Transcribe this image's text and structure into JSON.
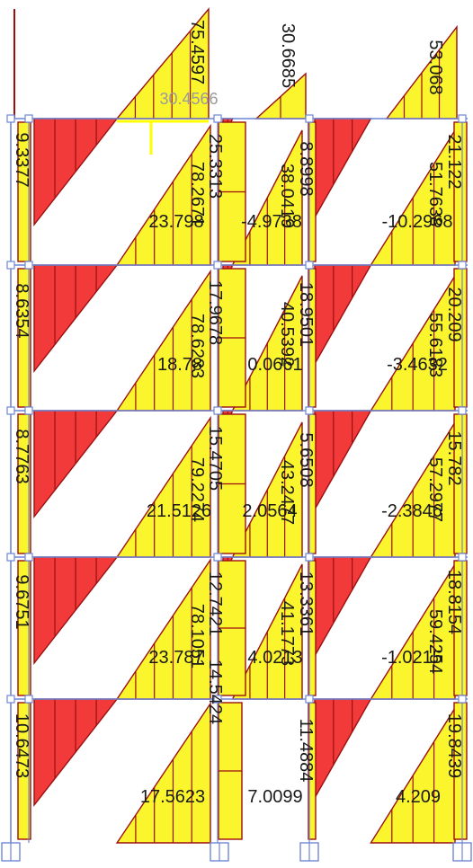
{
  "diagram": {
    "colors": {
      "negative_fill": "#f23a3a",
      "positive_fill": "#fbf52e",
      "outline": "#9b0f0f",
      "frame": "#6f86d6",
      "highlight": "#ffff00",
      "text": "#1a1a1a",
      "gray_text": "#9a9a9a"
    },
    "top_row": {
      "labels": [
        "75.4597",
        "30.4566",
        "30.6685",
        "53.068"
      ]
    },
    "beam_values": [
      [
        "23.798",
        "-4.9738",
        "-10.2968"
      ],
      [
        "18.78",
        "0.0661",
        "-3.4632"
      ],
      [
        "21.5126",
        "2.0564",
        "-2.3846"
      ],
      [
        "23.787",
        "4.0213",
        "-1.0215"
      ],
      [
        "17.5623",
        "7.0099",
        "4.209"
      ]
    ],
    "span_values": [
      [
        "78.2671",
        "38.0419",
        "51.7638"
      ],
      [
        "78.6233",
        "40.5392",
        "55.6183"
      ],
      [
        "79.2274",
        "43.2477",
        "57.2977"
      ],
      [
        "78.1051",
        "41.1773",
        "59.4254"
      ]
    ],
    "column_values": {
      "left": [
        "9.3377",
        "8.6354",
        "8.7763",
        "9.6751",
        "10.6473"
      ],
      "center": [
        "25.3313",
        "17.9678",
        "15.4705",
        "12.7421",
        "14.5424"
      ],
      "middle": [
        "8.8998",
        "18.9501",
        "5.6508",
        "13.3361",
        "11.4884"
      ],
      "right": [
        "21.122",
        "20.209",
        "15.782",
        "18.8154",
        "19.8439"
      ]
    }
  }
}
